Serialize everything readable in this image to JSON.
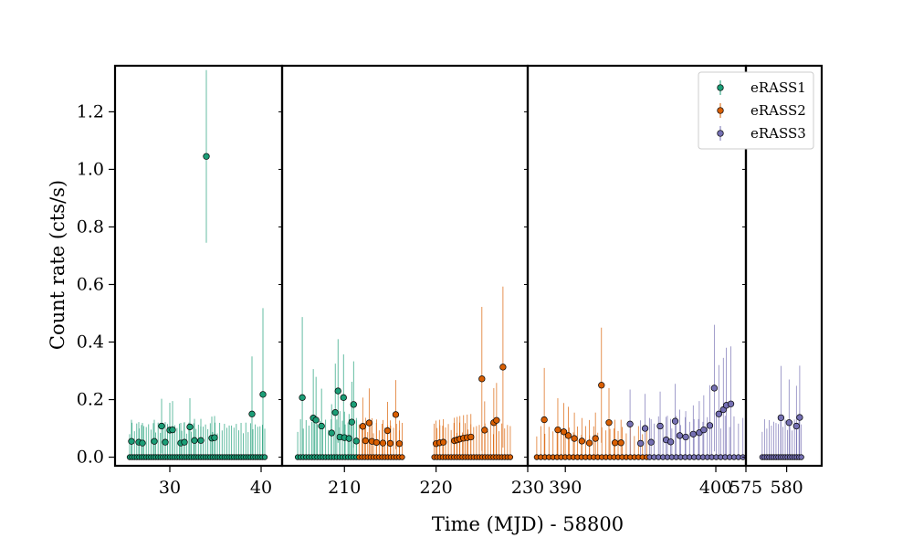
{
  "chart_data": {
    "type": "scatter",
    "title": "",
    "xlabel": "Time (MJD) - 58800",
    "ylabel": "Count rate (cts/s)",
    "ylim": [
      -0.03,
      1.36
    ],
    "y_ticks": [
      0.0,
      0.2,
      0.4,
      0.6,
      0.8,
      1.0,
      1.2
    ],
    "y_tick_labels": [
      "0.0",
      "0.2",
      "0.4",
      "0.6",
      "0.8",
      "1.0",
      "1.2"
    ],
    "legend": {
      "placement": "top-right"
    },
    "series": [
      {
        "name": "eRASS1",
        "color": "#1b9e77"
      },
      {
        "name": "eRASS2",
        "color": "#d95f02"
      },
      {
        "name": "eRASS3",
        "color": "#7570b3"
      }
    ],
    "panels": [
      {
        "xlim": [
          24.0,
          42.3
        ],
        "x_ticks": [
          30,
          40
        ],
        "x_tick_labels": [
          "30",
          "40"
        ],
        "points": [
          {
            "series": 0,
            "x": 25.8,
            "y": 0.055,
            "err": 0.075
          },
          {
            "series": 0,
            "x": 26.6,
            "y": 0.052,
            "err": 0.07
          },
          {
            "series": 0,
            "x": 27.0,
            "y": 0.049,
            "err": 0.07
          },
          {
            "series": 0,
            "x": 28.3,
            "y": 0.055,
            "err": 0.075
          },
          {
            "series": 0,
            "x": 29.1,
            "y": 0.108,
            "err": 0.095
          },
          {
            "series": 0,
            "x": 29.5,
            "y": 0.052,
            "err": 0.07
          },
          {
            "series": 0,
            "x": 30.0,
            "y": 0.094,
            "err": 0.095
          },
          {
            "series": 0,
            "x": 30.3,
            "y": 0.095,
            "err": 0.1
          },
          {
            "series": 0,
            "x": 31.2,
            "y": 0.049,
            "err": 0.07
          },
          {
            "series": 0,
            "x": 31.6,
            "y": 0.052,
            "err": 0.07
          },
          {
            "series": 0,
            "x": 32.2,
            "y": 0.105,
            "err": 0.1
          },
          {
            "series": 0,
            "x": 32.7,
            "y": 0.058,
            "err": 0.075
          },
          {
            "series": 0,
            "x": 33.4,
            "y": 0.058,
            "err": 0.075
          },
          {
            "series": 0,
            "x": 34.0,
            "y": 1.045,
            "err": 0.3
          },
          {
            "series": 0,
            "x": 34.6,
            "y": 0.066,
            "err": 0.075
          },
          {
            "series": 0,
            "x": 34.9,
            "y": 0.068,
            "err": 0.075
          },
          {
            "series": 0,
            "x": 39.0,
            "y": 0.15,
            "err": 0.2
          },
          {
            "series": 0,
            "x": 40.2,
            "y": 0.218,
            "err": 0.3
          }
        ],
        "zeros": [
          {
            "series": 0,
            "x0": 25.6,
            "x1": 40.4,
            "n": 58,
            "err": 0.1
          }
        ]
      },
      {
        "xlim": [
          203.2,
          230.0
        ],
        "x_ticks": [
          210,
          220,
          230
        ],
        "x_tick_labels": [
          "210",
          "220",
          "230"
        ],
        "points": [
          {
            "series": 0,
            "x": 205.4,
            "y": 0.207,
            "err": 0.28
          },
          {
            "series": 0,
            "x": 206.6,
            "y": 0.136,
            "err": 0.17
          },
          {
            "series": 0,
            "x": 206.9,
            "y": 0.129,
            "err": 0.15
          },
          {
            "series": 0,
            "x": 207.5,
            "y": 0.108,
            "err": 0.13
          },
          {
            "series": 0,
            "x": 208.6,
            "y": 0.084,
            "err": 0.1
          },
          {
            "series": 0,
            "x": 209.0,
            "y": 0.155,
            "err": 0.17
          },
          {
            "series": 0,
            "x": 209.3,
            "y": 0.23,
            "err": 0.18
          },
          {
            "series": 0,
            "x": 209.5,
            "y": 0.07,
            "err": 0.09
          },
          {
            "series": 0,
            "x": 209.9,
            "y": 0.207,
            "err": 0.15
          },
          {
            "series": 0,
            "x": 210.0,
            "y": 0.068,
            "err": 0.09
          },
          {
            "series": 0,
            "x": 210.5,
            "y": 0.065,
            "err": 0.085
          },
          {
            "series": 0,
            "x": 210.8,
            "y": 0.122,
            "err": 0.14
          },
          {
            "series": 0,
            "x": 211.0,
            "y": 0.183,
            "err": 0.15
          },
          {
            "series": 0,
            "x": 211.3,
            "y": 0.056,
            "err": 0.08
          },
          {
            "series": 1,
            "x": 212.0,
            "y": 0.107,
            "err": 0.1
          },
          {
            "series": 1,
            "x": 212.3,
            "y": 0.057,
            "err": 0.08
          },
          {
            "series": 1,
            "x": 212.7,
            "y": 0.119,
            "err": 0.12
          },
          {
            "series": 1,
            "x": 213.0,
            "y": 0.055,
            "err": 0.08
          },
          {
            "series": 1,
            "x": 213.5,
            "y": 0.051,
            "err": 0.08
          },
          {
            "series": 1,
            "x": 214.2,
            "y": 0.049,
            "err": 0.08
          },
          {
            "series": 1,
            "x": 214.7,
            "y": 0.092,
            "err": 0.1
          },
          {
            "series": 1,
            "x": 215.0,
            "y": 0.048,
            "err": 0.08
          },
          {
            "series": 1,
            "x": 215.6,
            "y": 0.148,
            "err": 0.12
          },
          {
            "series": 1,
            "x": 216.0,
            "y": 0.047,
            "err": 0.08
          },
          {
            "series": 1,
            "x": 220.0,
            "y": 0.047,
            "err": 0.08
          },
          {
            "series": 1,
            "x": 220.4,
            "y": 0.05,
            "err": 0.08
          },
          {
            "series": 1,
            "x": 220.8,
            "y": 0.052,
            "err": 0.08
          },
          {
            "series": 1,
            "x": 222.0,
            "y": 0.057,
            "err": 0.08
          },
          {
            "series": 1,
            "x": 222.3,
            "y": 0.06,
            "err": 0.08
          },
          {
            "series": 1,
            "x": 222.6,
            "y": 0.063,
            "err": 0.08
          },
          {
            "series": 1,
            "x": 223.0,
            "y": 0.066,
            "err": 0.08
          },
          {
            "series": 1,
            "x": 223.4,
            "y": 0.068,
            "err": 0.08
          },
          {
            "series": 1,
            "x": 223.8,
            "y": 0.07,
            "err": 0.08
          },
          {
            "series": 1,
            "x": 225.0,
            "y": 0.272,
            "err": 0.25
          },
          {
            "series": 1,
            "x": 225.3,
            "y": 0.094,
            "err": 0.1
          },
          {
            "series": 1,
            "x": 226.3,
            "y": 0.12,
            "err": 0.12
          },
          {
            "series": 1,
            "x": 226.6,
            "y": 0.128,
            "err": 0.13
          },
          {
            "series": 1,
            "x": 227.3,
            "y": 0.313,
            "err": 0.28
          }
        ],
        "zeros": [
          {
            "series": 0,
            "x0": 204.9,
            "x1": 211.3,
            "n": 22,
            "err": 0.11
          },
          {
            "series": 1,
            "x0": 211.6,
            "x1": 216.3,
            "n": 16,
            "err": 0.1
          },
          {
            "series": 1,
            "x0": 219.8,
            "x1": 228.1,
            "n": 28,
            "err": 0.1
          }
        ]
      },
      {
        "xlim": [
          387.5,
          402.0
        ],
        "x_ticks": [
          390,
          400
        ],
        "x_tick_labels": [
          "390",
          "400"
        ],
        "points": [
          {
            "series": 1,
            "x": 388.6,
            "y": 0.13,
            "err": 0.18
          },
          {
            "series": 1,
            "x": 389.5,
            "y": 0.095,
            "err": 0.11
          },
          {
            "series": 1,
            "x": 389.9,
            "y": 0.088,
            "err": 0.1
          },
          {
            "series": 1,
            "x": 390.2,
            "y": 0.075,
            "err": 0.1
          },
          {
            "series": 1,
            "x": 390.6,
            "y": 0.065,
            "err": 0.09
          },
          {
            "series": 1,
            "x": 391.1,
            "y": 0.056,
            "err": 0.08
          },
          {
            "series": 1,
            "x": 391.6,
            "y": 0.049,
            "err": 0.08
          },
          {
            "series": 1,
            "x": 392.0,
            "y": 0.065,
            "err": 0.09
          },
          {
            "series": 1,
            "x": 392.4,
            "y": 0.25,
            "err": 0.2
          },
          {
            "series": 1,
            "x": 392.9,
            "y": 0.12,
            "err": 0.12
          },
          {
            "series": 1,
            "x": 393.3,
            "y": 0.05,
            "err": 0.08
          },
          {
            "series": 1,
            "x": 393.7,
            "y": 0.05,
            "err": 0.08
          },
          {
            "series": 2,
            "x": 394.3,
            "y": 0.115,
            "err": 0.12
          },
          {
            "series": 2,
            "x": 395.0,
            "y": 0.048,
            "err": 0.08
          },
          {
            "series": 2,
            "x": 395.3,
            "y": 0.1,
            "err": 0.12
          },
          {
            "series": 2,
            "x": 395.7,
            "y": 0.052,
            "err": 0.08
          },
          {
            "series": 2,
            "x": 396.3,
            "y": 0.108,
            "err": 0.12
          },
          {
            "series": 2,
            "x": 396.7,
            "y": 0.06,
            "err": 0.08
          },
          {
            "series": 2,
            "x": 397.0,
            "y": 0.053,
            "err": 0.08
          },
          {
            "series": 2,
            "x": 397.3,
            "y": 0.125,
            "err": 0.13
          },
          {
            "series": 2,
            "x": 397.6,
            "y": 0.075,
            "err": 0.09
          },
          {
            "series": 2,
            "x": 398.0,
            "y": 0.07,
            "err": 0.09
          },
          {
            "series": 2,
            "x": 398.5,
            "y": 0.08,
            "err": 0.1
          },
          {
            "series": 2,
            "x": 398.9,
            "y": 0.085,
            "err": 0.11
          },
          {
            "series": 2,
            "x": 399.2,
            "y": 0.095,
            "err": 0.12
          },
          {
            "series": 2,
            "x": 399.6,
            "y": 0.11,
            "err": 0.14
          },
          {
            "series": 2,
            "x": 399.9,
            "y": 0.24,
            "err": 0.22
          },
          {
            "series": 2,
            "x": 400.2,
            "y": 0.15,
            "err": 0.17
          },
          {
            "series": 2,
            "x": 400.5,
            "y": 0.165,
            "err": 0.18
          },
          {
            "series": 2,
            "x": 400.7,
            "y": 0.18,
            "err": 0.2
          },
          {
            "series": 2,
            "x": 401.0,
            "y": 0.185,
            "err": 0.2
          }
        ],
        "zeros": [
          {
            "series": 1,
            "x0": 388.1,
            "x1": 395.4,
            "n": 28,
            "err": 0.09
          },
          {
            "series": 2,
            "x0": 395.6,
            "x1": 401.8,
            "n": 22,
            "err": 0.12
          }
        ]
      },
      {
        "xlim": [
          575.0,
          584.3
        ],
        "x_ticks": [
          575,
          580
        ],
        "x_tick_labels": [
          "575",
          "580"
        ],
        "points": [
          {
            "series": 2,
            "x": 579.3,
            "y": 0.137,
            "err": 0.18
          },
          {
            "series": 2,
            "x": 580.3,
            "y": 0.12,
            "err": 0.15
          },
          {
            "series": 2,
            "x": 581.2,
            "y": 0.108,
            "err": 0.14
          },
          {
            "series": 2,
            "x": 581.6,
            "y": 0.138,
            "err": 0.18
          }
        ],
        "zeros": [
          {
            "series": 2,
            "x0": 577.0,
            "x1": 581.8,
            "n": 18,
            "err": 0.11
          }
        ]
      }
    ]
  }
}
